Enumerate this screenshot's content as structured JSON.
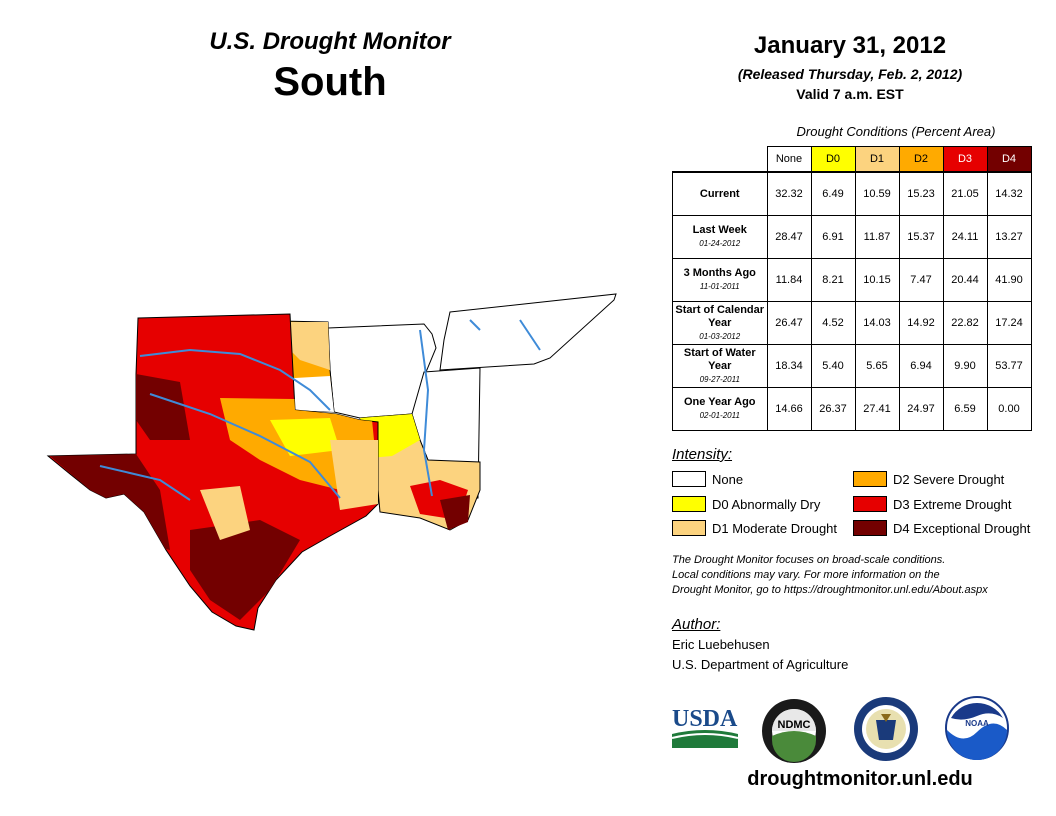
{
  "header": {
    "title": "U.S. Drought Monitor",
    "region": "South",
    "date": "January 31, 2012",
    "released": "(Released Thursday, Feb. 2, 2012)",
    "valid": "Valid 7 a.m. EST"
  },
  "table": {
    "caption": "Drought Conditions (Percent Area)",
    "columns": [
      "None",
      "D0",
      "D1",
      "D2",
      "D3",
      "D4"
    ],
    "column_colors": [
      "#ffffff",
      "#ffff00",
      "#fcd37f",
      "#ffaa00",
      "#e60000",
      "#730000"
    ],
    "rows": [
      {
        "label": "Current",
        "date": "",
        "values": [
          "32.32",
          "6.49",
          "10.59",
          "15.23",
          "21.05",
          "14.32"
        ]
      },
      {
        "label": "Last Week",
        "date": "01-24-2012",
        "values": [
          "28.47",
          "6.91",
          "11.87",
          "15.37",
          "24.11",
          "13.27"
        ]
      },
      {
        "label": "3 Months Ago",
        "date": "11-01-2011",
        "values": [
          "11.84",
          "8.21",
          "10.15",
          "7.47",
          "20.44",
          "41.90"
        ]
      },
      {
        "label": "Start of Calendar Year",
        "date": "01-03-2012",
        "values": [
          "26.47",
          "4.52",
          "14.03",
          "14.92",
          "22.82",
          "17.24"
        ]
      },
      {
        "label": "Start of Water Year",
        "date": "09-27-2011",
        "values": [
          "18.34",
          "5.40",
          "5.65",
          "6.94",
          "9.90",
          "53.77"
        ]
      },
      {
        "label": "One Year Ago",
        "date": "02-01-2011",
        "values": [
          "14.66",
          "26.37",
          "27.41",
          "24.97",
          "6.59",
          "0.00"
        ]
      }
    ]
  },
  "legend": {
    "title": "Intensity:",
    "items": [
      {
        "label": "None",
        "color": "#ffffff"
      },
      {
        "label": "D0 Abnormally Dry",
        "color": "#ffff00"
      },
      {
        "label": "D1 Moderate Drought",
        "color": "#fcd37f"
      },
      {
        "label": "D2 Severe Drought",
        "color": "#ffaa00"
      },
      {
        "label": "D3 Extreme Drought",
        "color": "#e60000"
      },
      {
        "label": "D4 Exceptional Drought",
        "color": "#730000"
      }
    ]
  },
  "note": {
    "line1": "The Drought Monitor focuses on broad-scale conditions.",
    "line2": "Local conditions may vary. For more information on the",
    "line3": "Drought Monitor, go to https://droughtmonitor.unl.edu/About.aspx"
  },
  "author": {
    "label": "Author:",
    "name": "Eric Luebehusen",
    "org": "U.S. Department of Agriculture"
  },
  "logos": {
    "usda": "USDA",
    "ndmc": "NDMC",
    "noaa": "NOAA"
  },
  "footer": {
    "url": "droughtmonitor.unl.edu"
  },
  "icons": [
    "usda-logo-icon",
    "ndmc-logo-icon",
    "commerce-seal-icon",
    "noaa-logo-icon"
  ]
}
